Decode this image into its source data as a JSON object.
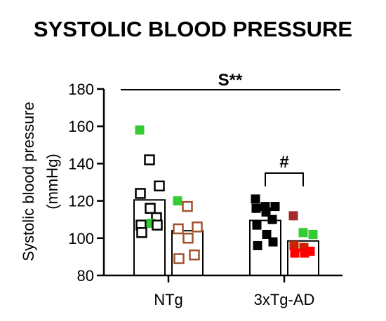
{
  "chart_data": {
    "type": "bar",
    "title": "SYSTOLIC BLOOD PRESSURE",
    "ylabel": "Systolic blood pressure",
    "ylabel_unit": "(mmHg)",
    "ylim": [
      80,
      180
    ],
    "yticks": [
      "80",
      "100",
      "120",
      "140",
      "160",
      "180"
    ],
    "categories": [
      "NTg",
      "3xTg-AD"
    ],
    "series": [
      {
        "values": [
          120.5,
          109.5
        ],
        "fill": "#ffffff",
        "points": [
          [
            [
              158,
              "#33cc33"
            ],
            [
              142,
              "#000000"
            ],
            [
              128,
              "#000000"
            ],
            [
              124,
              "#000000"
            ],
            [
              116,
              "#000000"
            ],
            [
              111,
              "#000000"
            ],
            [
              107,
              "#000000"
            ],
            [
              108,
              "#33cc33"
            ],
            [
              107,
              "#000000"
            ],
            [
              103,
              "#000000"
            ]
          ],
          [
            [
              121,
              "#000000"
            ],
            [
              117,
              "#000000"
            ],
            [
              117,
              "#000000"
            ],
            [
              116,
              "#000000"
            ],
            [
              114,
              "#000000"
            ],
            [
              110,
              "#000000"
            ],
            [
              107,
              "#000000"
            ],
            [
              102,
              "#000000"
            ],
            [
              98,
              "#000000"
            ],
            [
              96,
              "#000000"
            ]
          ]
        ],
        "marker": "filled"
      },
      {
        "values": [
          104,
          98.5
        ],
        "fill": "#ffffff",
        "points": [
          [
            [
              120,
              "#33cc33"
            ],
            [
              117,
              "#a0522d"
            ],
            [
              106,
              "#a0522d"
            ],
            [
              105,
              "#a0522d"
            ],
            [
              100,
              "#a0522d"
            ],
            [
              91,
              "#a0522d"
            ],
            [
              89,
              "#a0522d"
            ]
          ],
          [
            [
              112,
              "#a52a2a"
            ],
            [
              103,
              "#33cc33"
            ],
            [
              102,
              "#33cc33"
            ],
            [
              96,
              "#cc2200"
            ],
            [
              95,
              "#cc2200"
            ],
            [
              93,
              "#ff0000"
            ],
            [
              92,
              "#ff0000"
            ],
            [
              92,
              "#ff0000"
            ]
          ]
        ],
        "marker": "open-and-filled"
      }
    ],
    "annotations": [
      {
        "text": "S**",
        "type": "top-line"
      },
      {
        "text": "#",
        "type": "bracket",
        "category": "3xTg-AD"
      }
    ],
    "colors": {
      "axis": "#000000",
      "green": "#33cc33",
      "brown": "#a0522d",
      "red": "#ff0000"
    }
  }
}
